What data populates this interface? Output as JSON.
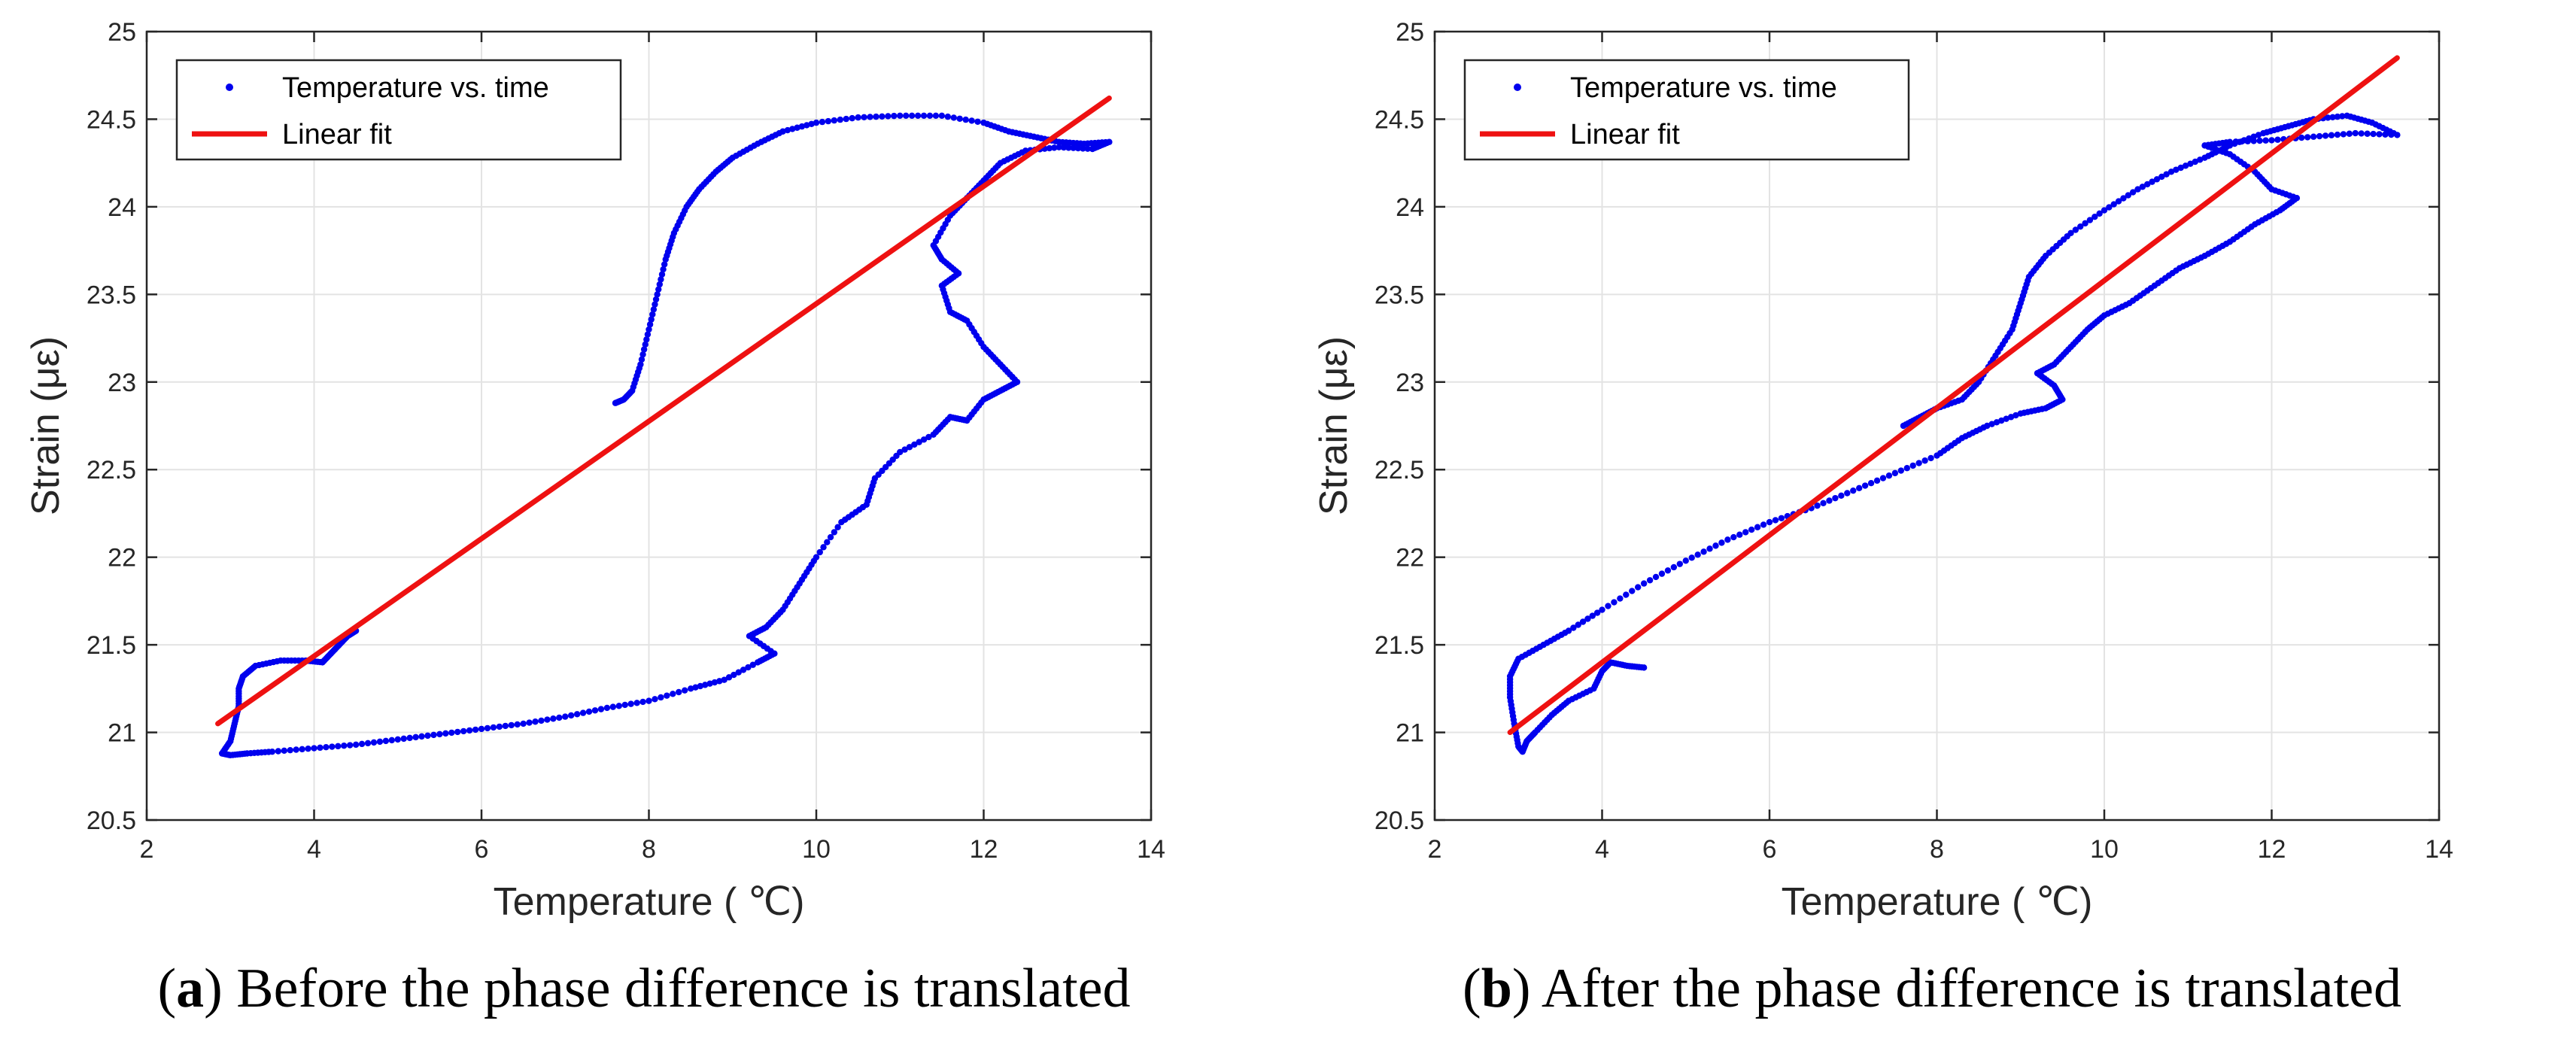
{
  "chart_data": [
    {
      "type": "scatter",
      "panel_label": "a",
      "caption": "Before the phase difference is translated",
      "xlabel": "Temperature ( ℃)",
      "ylabel": "Strain (με)",
      "xlim": [
        2,
        14
      ],
      "ylim": [
        20.5,
        25
      ],
      "xticks": [
        "2",
        "4",
        "6",
        "8",
        "10",
        "12",
        "14"
      ],
      "yticks": [
        "20.5",
        "21",
        "21.5",
        "22",
        "22.5",
        "23",
        "23.5",
        "24",
        "24.5",
        "25"
      ],
      "grid": true,
      "legend_position": "top-left",
      "series": [
        {
          "name": "Temperature vs. time",
          "style": "markers",
          "color": "#0000ee",
          "points": [
            [
              7.6,
              22.88
            ],
            [
              7.7,
              22.9
            ],
            [
              7.8,
              22.95
            ],
            [
              7.9,
              23.1
            ],
            [
              8.0,
              23.3
            ],
            [
              8.1,
              23.5
            ],
            [
              8.2,
              23.7
            ],
            [
              8.3,
              23.85
            ],
            [
              8.45,
              24.0
            ],
            [
              8.6,
              24.1
            ],
            [
              8.8,
              24.2
            ],
            [
              9.0,
              24.28
            ],
            [
              9.3,
              24.36
            ],
            [
              9.6,
              24.43
            ],
            [
              10.0,
              24.48
            ],
            [
              10.5,
              24.51
            ],
            [
              11.0,
              24.52
            ],
            [
              11.5,
              24.52
            ],
            [
              12.0,
              24.48
            ],
            [
              12.3,
              24.43
            ],
            [
              12.6,
              24.4
            ],
            [
              12.9,
              24.37
            ],
            [
              13.2,
              24.36
            ],
            [
              13.5,
              24.37
            ],
            [
              13.3,
              24.33
            ],
            [
              12.9,
              24.34
            ],
            [
              12.5,
              24.32
            ],
            [
              12.2,
              24.25
            ],
            [
              12.0,
              24.15
            ],
            [
              11.8,
              24.05
            ],
            [
              11.6,
              23.95
            ],
            [
              11.4,
              23.78
            ],
            [
              11.5,
              23.7
            ],
            [
              11.7,
              23.62
            ],
            [
              11.5,
              23.55
            ],
            [
              11.6,
              23.4
            ],
            [
              11.8,
              23.35
            ],
            [
              12.0,
              23.2
            ],
            [
              12.2,
              23.1
            ],
            [
              12.4,
              23.0
            ],
            [
              12.2,
              22.95
            ],
            [
              12.0,
              22.9
            ],
            [
              11.8,
              22.78
            ],
            [
              11.6,
              22.8
            ],
            [
              11.4,
              22.7
            ],
            [
              11.0,
              22.6
            ],
            [
              10.7,
              22.45
            ],
            [
              10.6,
              22.3
            ],
            [
              10.3,
              22.2
            ],
            [
              10.0,
              22.0
            ],
            [
              9.8,
              21.85
            ],
            [
              9.6,
              21.7
            ],
            [
              9.4,
              21.6
            ],
            [
              9.2,
              21.55
            ],
            [
              9.5,
              21.45
            ],
            [
              9.3,
              21.4
            ],
            [
              8.9,
              21.3
            ],
            [
              8.5,
              21.25
            ],
            [
              8.0,
              21.18
            ],
            [
              7.5,
              21.14
            ],
            [
              7.0,
              21.09
            ],
            [
              6.5,
              21.05
            ],
            [
              6.0,
              21.02
            ],
            [
              5.5,
              20.99
            ],
            [
              5.0,
              20.96
            ],
            [
              4.5,
              20.93
            ],
            [
              4.0,
              20.91
            ],
            [
              3.5,
              20.89
            ],
            [
              3.2,
              20.88
            ],
            [
              3.0,
              20.87
            ],
            [
              2.9,
              20.88
            ],
            [
              3.0,
              20.95
            ],
            [
              3.05,
              21.05
            ],
            [
              3.1,
              21.15
            ],
            [
              3.1,
              21.25
            ],
            [
              3.15,
              21.32
            ],
            [
              3.3,
              21.38
            ],
            [
              3.6,
              21.41
            ],
            [
              3.9,
              21.41
            ],
            [
              4.1,
              21.4
            ],
            [
              4.2,
              21.45
            ],
            [
              4.3,
              21.5
            ],
            [
              4.4,
              21.55
            ],
            [
              4.5,
              21.58
            ]
          ]
        },
        {
          "name": "Linear fit",
          "style": "line",
          "color": "#ee1111",
          "points": [
            [
              2.85,
              21.05
            ],
            [
              13.5,
              24.62
            ]
          ]
        }
      ]
    },
    {
      "type": "scatter",
      "panel_label": "b",
      "caption": "After the phase difference is translated",
      "xlabel": "Temperature ( ℃)",
      "ylabel": "Strain (με)",
      "xlim": [
        2,
        14
      ],
      "ylim": [
        20.5,
        25
      ],
      "xticks": [
        "2",
        "4",
        "6",
        "8",
        "10",
        "12",
        "14"
      ],
      "yticks": [
        "20.5",
        "21",
        "21.5",
        "22",
        "22.5",
        "23",
        "23.5",
        "24",
        "24.5",
        "25"
      ],
      "grid": true,
      "legend_position": "top-left",
      "series": [
        {
          "name": "Temperature vs. time",
          "style": "markers",
          "color": "#0000ee",
          "points": [
            [
              4.5,
              21.37
            ],
            [
              4.3,
              21.38
            ],
            [
              4.1,
              21.4
            ],
            [
              4.0,
              21.35
            ],
            [
              3.9,
              21.25
            ],
            [
              3.6,
              21.18
            ],
            [
              3.4,
              21.1
            ],
            [
              3.2,
              21.0
            ],
            [
              3.1,
              20.95
            ],
            [
              3.05,
              20.89
            ],
            [
              3.0,
              20.92
            ],
            [
              2.95,
              21.05
            ],
            [
              2.9,
              21.2
            ],
            [
              2.9,
              21.32
            ],
            [
              3.0,
              21.42
            ],
            [
              3.3,
              21.5
            ],
            [
              3.6,
              21.58
            ],
            [
              4.0,
              21.7
            ],
            [
              4.5,
              21.85
            ],
            [
              5.0,
              21.98
            ],
            [
              5.5,
              22.1
            ],
            [
              6.0,
              22.2
            ],
            [
              6.5,
              22.28
            ],
            [
              7.0,
              22.38
            ],
            [
              7.5,
              22.48
            ],
            [
              8.0,
              22.58
            ],
            [
              8.3,
              22.68
            ],
            [
              8.6,
              22.75
            ],
            [
              9.0,
              22.82
            ],
            [
              9.3,
              22.85
            ],
            [
              9.5,
              22.9
            ],
            [
              9.4,
              22.98
            ],
            [
              9.2,
              23.05
            ],
            [
              9.4,
              23.1
            ],
            [
              9.6,
              23.2
            ],
            [
              9.8,
              23.3
            ],
            [
              10.0,
              23.38
            ],
            [
              10.3,
              23.45
            ],
            [
              10.6,
              23.55
            ],
            [
              10.9,
              23.65
            ],
            [
              11.2,
              23.72
            ],
            [
              11.5,
              23.8
            ],
            [
              11.8,
              23.9
            ],
            [
              12.1,
              23.98
            ],
            [
              12.3,
              24.05
            ],
            [
              12.0,
              24.1
            ],
            [
              11.8,
              24.2
            ],
            [
              11.5,
              24.3
            ],
            [
              11.2,
              24.35
            ],
            [
              11.5,
              24.37
            ],
            [
              12.0,
              24.38
            ],
            [
              12.5,
              24.4
            ],
            [
              13.0,
              24.42
            ],
            [
              13.5,
              24.41
            ],
            [
              13.2,
              24.48
            ],
            [
              12.9,
              24.52
            ],
            [
              12.5,
              24.5
            ],
            [
              12.2,
              24.46
            ],
            [
              11.9,
              24.42
            ],
            [
              11.5,
              24.35
            ],
            [
              11.2,
              24.28
            ],
            [
              10.8,
              24.2
            ],
            [
              10.4,
              24.1
            ],
            [
              10.0,
              23.98
            ],
            [
              9.6,
              23.85
            ],
            [
              9.3,
              23.72
            ],
            [
              9.1,
              23.6
            ],
            [
              9.0,
              23.45
            ],
            [
              8.9,
              23.3
            ],
            [
              8.7,
              23.15
            ],
            [
              8.5,
              23.0
            ],
            [
              8.3,
              22.9
            ],
            [
              8.0,
              22.85
            ],
            [
              7.8,
              22.8
            ],
            [
              7.6,
              22.75
            ]
          ]
        },
        {
          "name": "Linear fit",
          "style": "line",
          "color": "#ee1111",
          "points": [
            [
              2.9,
              21.0
            ],
            [
              13.5,
              24.85
            ]
          ]
        }
      ]
    }
  ]
}
